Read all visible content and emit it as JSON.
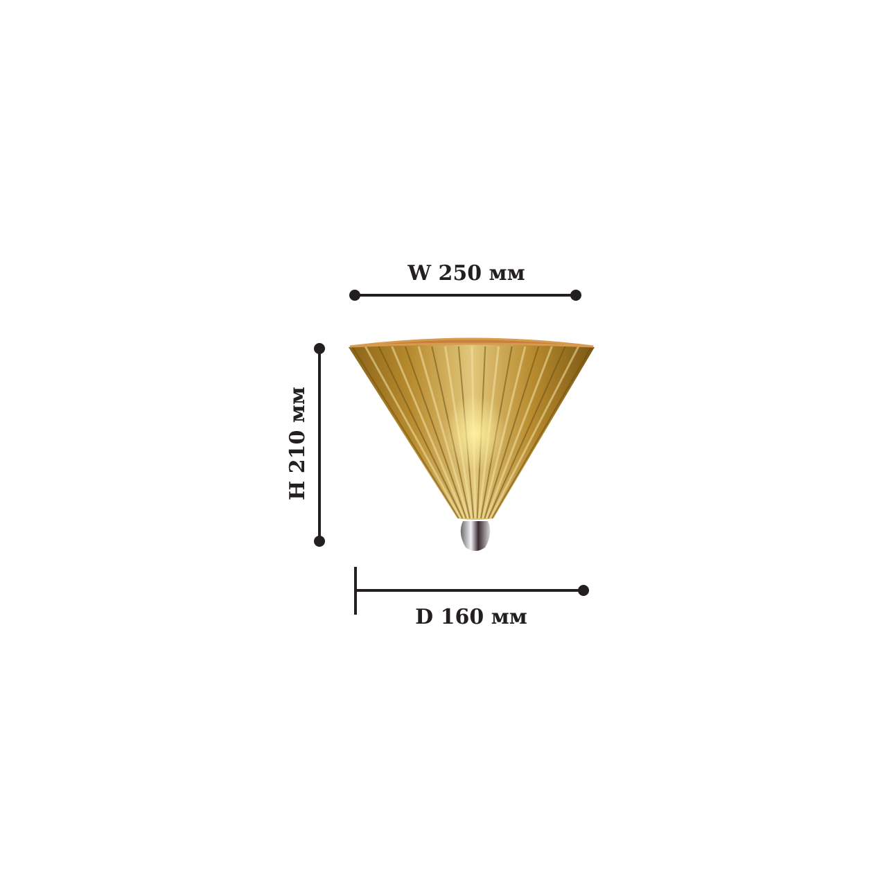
{
  "dimensions": {
    "width_label": "W 250 мм",
    "height_label": "H 210 мм",
    "depth_label": "D 160 мм"
  },
  "colors": {
    "line": "#231f20",
    "amber_light": "#e4c77a",
    "amber_mid": "#b78a2e",
    "amber_dark": "#7a5714",
    "rim": "#c9803a",
    "chrome": "#c9c9cc"
  },
  "product_image": {
    "icon": "amber-glass-cone-wall-lamp"
  }
}
